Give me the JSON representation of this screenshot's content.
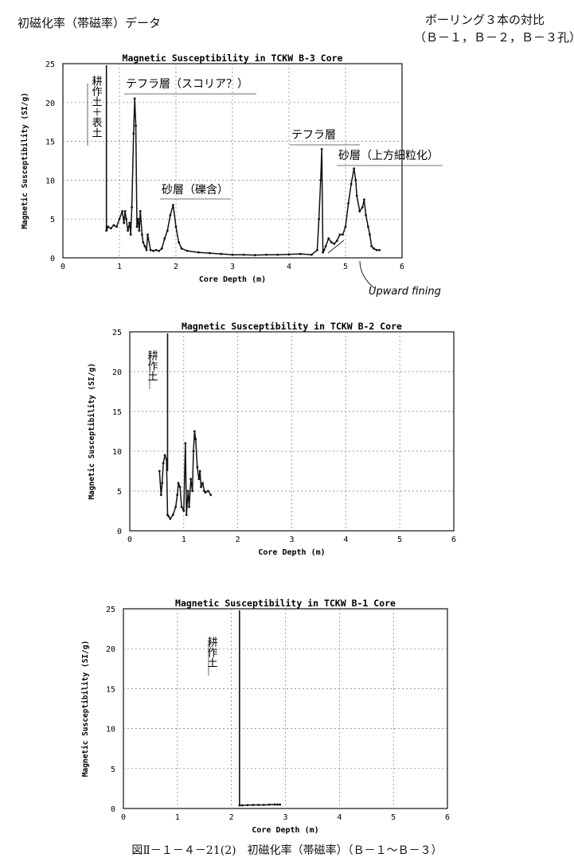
{
  "page": {
    "title_left": "初磁化率（帯磁率）データ",
    "title_right_line1": "ボーリング３本の対比",
    "title_right_line2": "（Ｂ－１，Ｂ－２，Ｂ－３孔）",
    "caption": "図Ⅱ－１－４－21(2)　初磁化率（帯磁率）（Ｂ－１～Ｂ－３）"
  },
  "chart_data": [
    {
      "type": "line",
      "title": "Magnetic Susceptibility in TCKW B-3 Core",
      "xlabel": "Core Depth (m)",
      "ylabel": "Magnetic Susceptibility (SI/g)",
      "xlim": [
        0,
        6
      ],
      "ylim": [
        0,
        25
      ],
      "xticks": [
        "0",
        "1",
        "2",
        "3",
        "4",
        "5",
        "6"
      ],
      "yticks": [
        "0",
        "5",
        "10",
        "15",
        "20",
        "25"
      ],
      "grid": "dashed",
      "marker_line": {
        "x": 0.77
      },
      "series": [
        {
          "x": [
            0.77,
            0.8,
            0.85,
            0.9,
            0.95,
            1.0,
            1.05,
            1.08,
            1.1,
            1.12,
            1.15,
            1.18,
            1.2,
            1.22,
            1.25,
            1.27,
            1.29,
            1.31,
            1.33,
            1.35,
            1.37,
            1.4,
            1.42,
            1.45,
            1.48,
            1.5,
            1.55,
            1.6,
            1.65,
            1.7,
            1.75,
            1.8,
            1.85,
            1.9,
            1.95,
            2.0,
            2.05,
            2.1,
            2.2,
            2.4,
            2.6,
            2.8,
            3.0,
            3.2,
            3.4,
            3.6,
            3.8,
            4.0,
            4.2,
            4.4,
            4.5,
            4.53,
            4.56,
            4.58,
            4.6,
            4.62,
            4.65,
            4.7,
            4.75,
            4.8,
            4.85,
            4.9,
            4.95,
            5.0,
            5.05,
            5.1,
            5.15,
            5.18,
            5.2,
            5.25,
            5.3,
            5.33,
            5.36,
            5.4,
            5.43,
            5.46,
            5.5,
            5.55,
            5.6
          ],
          "y": [
            3.5,
            4.0,
            3.8,
            4.2,
            4.0,
            5.0,
            6.0,
            4.5,
            6.0,
            5.0,
            3.5,
            4.5,
            3.0,
            6.5,
            16.0,
            20.5,
            17.0,
            4.0,
            5.0,
            3.5,
            6.0,
            3.0,
            2.0,
            1.5,
            1.0,
            3.0,
            1.0,
            0.9,
            1.0,
            0.9,
            1.2,
            2.5,
            3.5,
            5.5,
            6.8,
            4.0,
            2.0,
            1.2,
            0.9,
            0.7,
            0.6,
            0.5,
            0.4,
            0.4,
            0.35,
            0.4,
            0.4,
            0.45,
            0.5,
            0.4,
            1.0,
            5.0,
            10.0,
            14.0,
            0.7,
            1.0,
            1.5,
            2.5,
            2.0,
            1.8,
            2.2,
            3.0,
            3.0,
            4.0,
            7.0,
            9.5,
            11.5,
            10.0,
            8.0,
            6.0,
            6.5,
            7.5,
            5.5,
            4.0,
            3.0,
            1.5,
            1.2,
            1.0,
            1.0
          ]
        }
      ],
      "annotations": [
        {
          "text": "耕作土＋表土",
          "vertical": true
        },
        {
          "text": "テフラ層（スコリア？）"
        },
        {
          "text": "砂層（礫含）"
        },
        {
          "text": "テフラ層"
        },
        {
          "text": "砂層（上方細粒化）"
        },
        {
          "text": "Upward fining"
        }
      ]
    },
    {
      "type": "line",
      "title": "Magnetic Susceptibility in TCKW B-2 Core",
      "xlabel": "Core Depth (m)",
      "ylabel": "Magnetic Susceptibility (SI/g)",
      "xlim": [
        0,
        6
      ],
      "ylim": [
        0,
        25
      ],
      "xticks": [
        "0",
        "1",
        "2",
        "3",
        "4",
        "5",
        "6"
      ],
      "yticks": [
        "0",
        "5",
        "10",
        "15",
        "20",
        "25"
      ],
      "grid": "dashed",
      "marker_line": {
        "x": 0.7
      },
      "series": [
        {
          "x": [
            0.55,
            0.58,
            0.6,
            0.62,
            0.65,
            0.68,
            0.7,
            0.72,
            0.75,
            0.8,
            0.85,
            0.88,
            0.9,
            0.93,
            0.96,
            1.0,
            1.03,
            1.05,
            1.08,
            1.1,
            1.13,
            1.16,
            1.18,
            1.2,
            1.22,
            1.25,
            1.28,
            1.3,
            1.32,
            1.35,
            1.38,
            1.4,
            1.45,
            1.5
          ],
          "y": [
            7.5,
            4.5,
            6.0,
            8.5,
            9.5,
            9.0,
            2.0,
            1.8,
            1.5,
            2.0,
            3.0,
            4.5,
            6.0,
            5.5,
            3.0,
            2.5,
            11.0,
            2.0,
            5.0,
            3.0,
            6.5,
            5.0,
            10.0,
            12.5,
            11.5,
            8.0,
            6.5,
            7.5,
            5.5,
            6.0,
            5.0,
            4.8,
            5.0,
            4.5
          ]
        }
      ],
      "annotations": [
        {
          "text": "耕作土",
          "vertical": true
        }
      ]
    },
    {
      "type": "line",
      "title": "Magnetic Susceptibility in TCKW B-1 Core",
      "xlabel": "Core Depth (m)",
      "ylabel": "Magnetic Susceptibility (SI/g)",
      "xlim": [
        0,
        6
      ],
      "ylim": [
        0,
        25
      ],
      "xticks": [
        "0",
        "1",
        "2",
        "3",
        "4",
        "5",
        "6"
      ],
      "yticks": [
        "0",
        "5",
        "10",
        "15",
        "20",
        "25"
      ],
      "grid": "dashed",
      "marker_line": {
        "x": 2.15
      },
      "series": [
        {
          "x": [
            2.15,
            2.2,
            2.3,
            2.4,
            2.5,
            2.6,
            2.7,
            2.8,
            2.85,
            2.9
          ],
          "y": [
            0.4,
            0.4,
            0.42,
            0.45,
            0.45,
            0.45,
            0.48,
            0.5,
            0.5,
            0.5
          ]
        }
      ],
      "annotations": [
        {
          "text": "耕作土",
          "vertical": true
        }
      ]
    }
  ]
}
